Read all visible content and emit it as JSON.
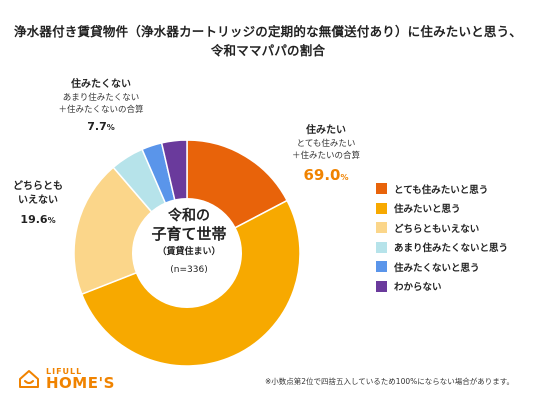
{
  "title": {
    "line1": "浄水器付き賃貸物件（浄水器カートリッジの定期的な無償送付あり）に住みたいと思う、",
    "line2": "令和ママパパの割合"
  },
  "center": {
    "line1": "令和の",
    "line2": "子育て世帯",
    "line3": "（賃貸住まい）",
    "line4": "(n=336)"
  },
  "callouts": {
    "want": {
      "name": "住みたい",
      "sub1": "とても住みたい",
      "sub2": "＋住みたいの合算",
      "pct": "69.0",
      "unit": "%",
      "color": "#f08300"
    },
    "neutral": {
      "name1": "どちらとも",
      "name2": "いえない",
      "pct": "19.6",
      "unit": "%",
      "color": "#222222"
    },
    "not_want": {
      "name": "住みたくない",
      "sub1": "あまり住みたくない",
      "sub2": "＋住みたくないの合算",
      "pct": "7.7",
      "unit": "%",
      "color": "#222222"
    }
  },
  "chart_data": {
    "type": "pie",
    "title": "浄水器付き賃貸物件（浄水器カートリッジの定期的な無償送付あり）に住みたいと思う、令和ママパパの割合",
    "series": [
      {
        "label": "とても住みたいと思う",
        "value": 17.3,
        "color": "#e8630a"
      },
      {
        "label": "住みたいと思う",
        "value": 51.7,
        "color": "#f7a900"
      },
      {
        "label": "どちらともいえない",
        "value": 19.6,
        "color": "#fbd68a"
      },
      {
        "label": "あまり住みたくないと思う",
        "value": 4.8,
        "color": "#b6e3ea"
      },
      {
        "label": "住みたくないと思う",
        "value": 2.9,
        "color": "#5a95ea"
      },
      {
        "label": "わからない",
        "value": 3.6,
        "color": "#6a3a9c"
      }
    ],
    "legend_position": "right"
  },
  "logo": {
    "line1": "LIFULL",
    "line2": "HOME'S",
    "color": "#f08300"
  },
  "footnote": "※小数点第2位で四捨五入しているため100%にならない場合があります。"
}
